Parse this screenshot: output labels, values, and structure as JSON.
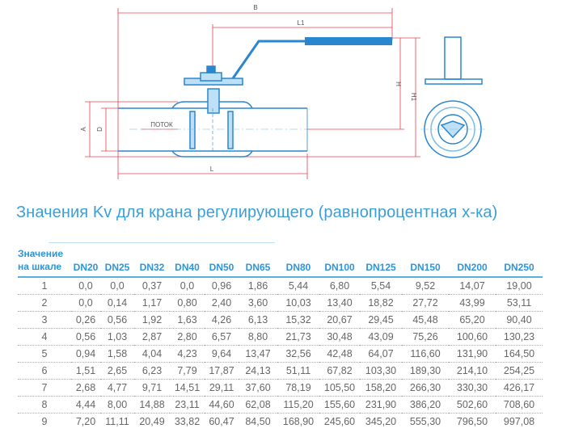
{
  "drawing": {
    "labels": {
      "B": "B",
      "L1": "L1",
      "H": "H",
      "H1": "H1",
      "A": "A",
      "D": "D",
      "L": "L",
      "flow": "ПОТОК"
    },
    "colors": {
      "dimension": "#e8414b",
      "body": "#2a86cf",
      "light": "#bde0f6"
    }
  },
  "title": "Значения Kv для крана регулирующего (равнопроцентная х-ка)",
  "table": {
    "header_line1": "Значение",
    "header_line2": "на шкале",
    "columns": [
      "DN20",
      "DN25",
      "DN32",
      "DN40",
      "DN50",
      "DN65",
      "DN80",
      "DN100",
      "DN125",
      "DN150",
      "DN200",
      "DN250"
    ],
    "rows": [
      [
        "1",
        "0,0",
        "0,0",
        "0,37",
        "0,0",
        "0,96",
        "1,86",
        "5,44",
        "6,80",
        "5,54",
        "9,52",
        "14,07",
        "19,00"
      ],
      [
        "2",
        "0,0",
        "0,14",
        "1,17",
        "0,80",
        "2,40",
        "3,60",
        "10,03",
        "13,40",
        "18,82",
        "27,72",
        "43,99",
        "53,11"
      ],
      [
        "3",
        "0,26",
        "0,56",
        "1,92",
        "1,63",
        "4,26",
        "6,13",
        "15,32",
        "20,67",
        "29,45",
        "45,48",
        "65,20",
        "90,40"
      ],
      [
        "4",
        "0,56",
        "1,03",
        "2,87",
        "2,80",
        "6,57",
        "8,80",
        "21,73",
        "30,48",
        "43,09",
        "75,26",
        "100,60",
        "130,23"
      ],
      [
        "5",
        "0,94",
        "1,58",
        "4,04",
        "4,23",
        "9,64",
        "13,47",
        "32,56",
        "42,48",
        "64,07",
        "116,60",
        "131,90",
        "164,50"
      ],
      [
        "6",
        "1,51",
        "2,65",
        "6,23",
        "7,79",
        "17,87",
        "24,13",
        "51,11",
        "67,82",
        "103,30",
        "189,30",
        "214,10",
        "254,25"
      ],
      [
        "7",
        "2,68",
        "4,77",
        "9,71",
        "14,51",
        "29,11",
        "37,60",
        "78,19",
        "105,50",
        "158,20",
        "266,30",
        "330,30",
        "426,17"
      ],
      [
        "8",
        "4,44",
        "8,00",
        "14,88",
        "23,11",
        "44,60",
        "62,08",
        "115,20",
        "155,60",
        "231,90",
        "386,20",
        "502,60",
        "708,60"
      ],
      [
        "9",
        "7,20",
        "11,11",
        "20,49",
        "33,82",
        "60,47",
        "84,50",
        "168,90",
        "245,60",
        "345,20",
        "555,30",
        "796,50",
        "997,08"
      ]
    ]
  }
}
